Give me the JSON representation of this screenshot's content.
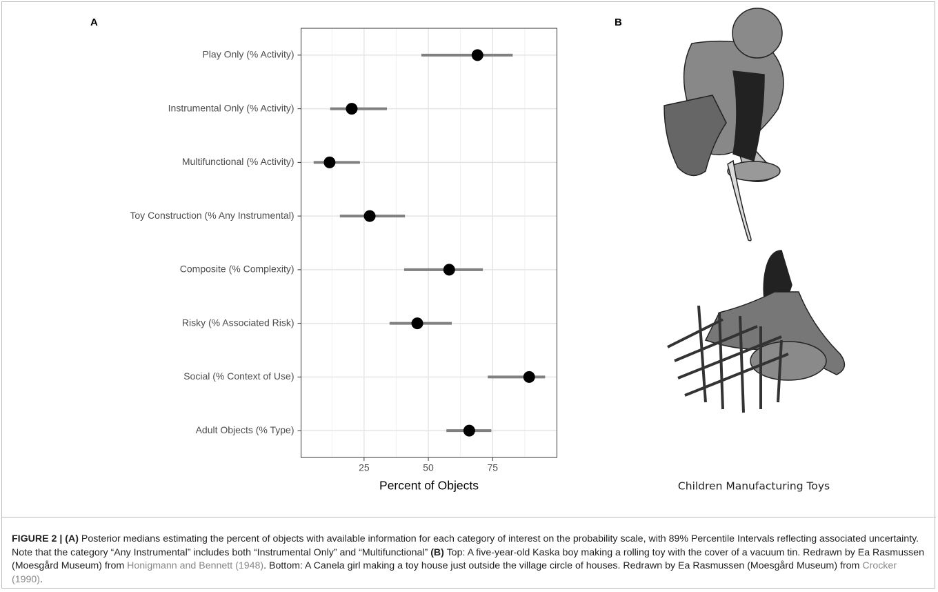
{
  "chart_data": {
    "type": "dot_interval",
    "categories": [
      "Play Only (% Activity)",
      "Instrumental Only (% Activity)",
      "Multifunctional (% Activity)",
      "Toy Construction (% Any Instrumental)",
      "Composite (% Complexity)",
      "Risky (% Associated Risk)",
      "Social (% Context of Use)",
      "Adult Objects (% Type)"
    ],
    "series": [
      {
        "values": [
          69.1,
          20.2,
          11.6,
          27.2,
          58.1,
          45.7,
          89.2,
          65.9
        ],
        "lower": [
          47.3,
          11.8,
          5.4,
          15.6,
          40.6,
          34.9,
          73.1,
          57.0
        ],
        "upper": [
          82.8,
          33.9,
          23.4,
          40.9,
          71.2,
          59.1,
          95.4,
          74.5
        ],
        "color": "#000000",
        "interval_color": "#808080"
      }
    ],
    "xlabel": "Percent of Objects",
    "xlim": [
      0.5,
      100
    ],
    "xticks": [
      25,
      50,
      75
    ],
    "x_minor_grid": [
      12.5,
      37.5,
      62.5,
      87.5
    ],
    "grid": true
  },
  "panels": [
    "A",
    "B"
  ],
  "illustration_caption": "Children Manufacturing Toys",
  "caption": [
    {
      "text": "FIGURE 2 | (A)",
      "style": "bold"
    },
    {
      "text": " Posterior medians estimating the percent of objects with available information for each category of interest on the probability scale, with 89% Percentile Intervals reflecting associated uncertainty. Note that the category “Any Instrumental” includes both “Instrumental Only” and “Multifunctional” ",
      "style": "plain"
    },
    {
      "text": "(B)",
      "style": "bold"
    },
    {
      "text": " Top: A five-year-old Kaska boy making a rolling toy with the cover of a vacuum tin. Redrawn by Ea Rasmussen (Moesgård Museum) from ",
      "style": "plain"
    },
    {
      "text": "Honigmann and Bennett (1948)",
      "style": "link"
    },
    {
      "text": ". Bottom: A Canela girl making a toy house just outside the village circle of houses. Redrawn by Ea Rasmussen (Moesgård Museum) from ",
      "style": "plain"
    },
    {
      "text": "Crocker (1990)",
      "style": "link"
    },
    {
      "text": ".",
      "style": "plain"
    }
  ]
}
